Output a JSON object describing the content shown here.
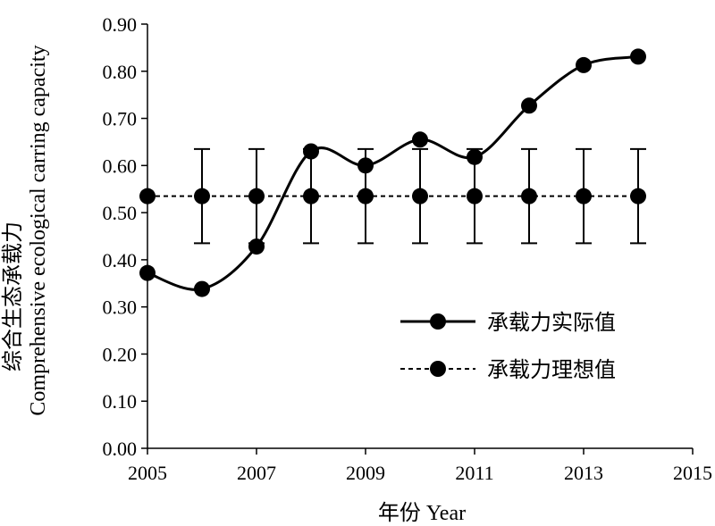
{
  "chart_data": {
    "type": "line",
    "xlabel": "年份 Year",
    "ylabel_line1": "综合生态承载力",
    "ylabel_line2": "Comprehensive ecological carring capacity",
    "xlim": [
      2005,
      2015
    ],
    "ylim": [
      0.0,
      0.9
    ],
    "x_ticks": [
      "2005",
      "2007",
      "2009",
      "2011",
      "2013",
      "2015"
    ],
    "y_ticks": [
      "0.00",
      "0.10",
      "0.20",
      "0.30",
      "0.40",
      "0.50",
      "0.60",
      "0.70",
      "0.80",
      "0.90"
    ],
    "x_tick_values": [
      2005,
      2007,
      2009,
      2011,
      2013,
      2015
    ],
    "y_tick_values": [
      0.0,
      0.1,
      0.2,
      0.3,
      0.4,
      0.5,
      0.6,
      0.7,
      0.8,
      0.9
    ],
    "grid": false,
    "legend_position": "lower-right",
    "series": [
      {
        "name": "承载力实际值",
        "style": "solid-smooth",
        "color": "#000000",
        "x": [
          2005,
          2006,
          2007,
          2008,
          2009,
          2010,
          2011,
          2012,
          2013,
          2014
        ],
        "y": [
          0.372,
          0.338,
          0.428,
          0.63,
          0.6,
          0.655,
          0.618,
          0.727,
          0.813,
          0.831
        ]
      },
      {
        "name": "承载力理想值",
        "style": "dashed",
        "color": "#000000",
        "x": [
          2005,
          2006,
          2007,
          2008,
          2009,
          2010,
          2011,
          2012,
          2013,
          2014
        ],
        "y": [
          0.535,
          0.535,
          0.535,
          0.535,
          0.535,
          0.535,
          0.535,
          0.535,
          0.535,
          0.535
        ],
        "error_upper": [
          null,
          0.635,
          0.635,
          0.635,
          0.635,
          0.635,
          0.635,
          0.635,
          0.635,
          0.635
        ],
        "error_lower": [
          null,
          0.435,
          0.435,
          0.435,
          0.435,
          0.435,
          0.435,
          0.435,
          0.435,
          0.435
        ]
      }
    ]
  }
}
